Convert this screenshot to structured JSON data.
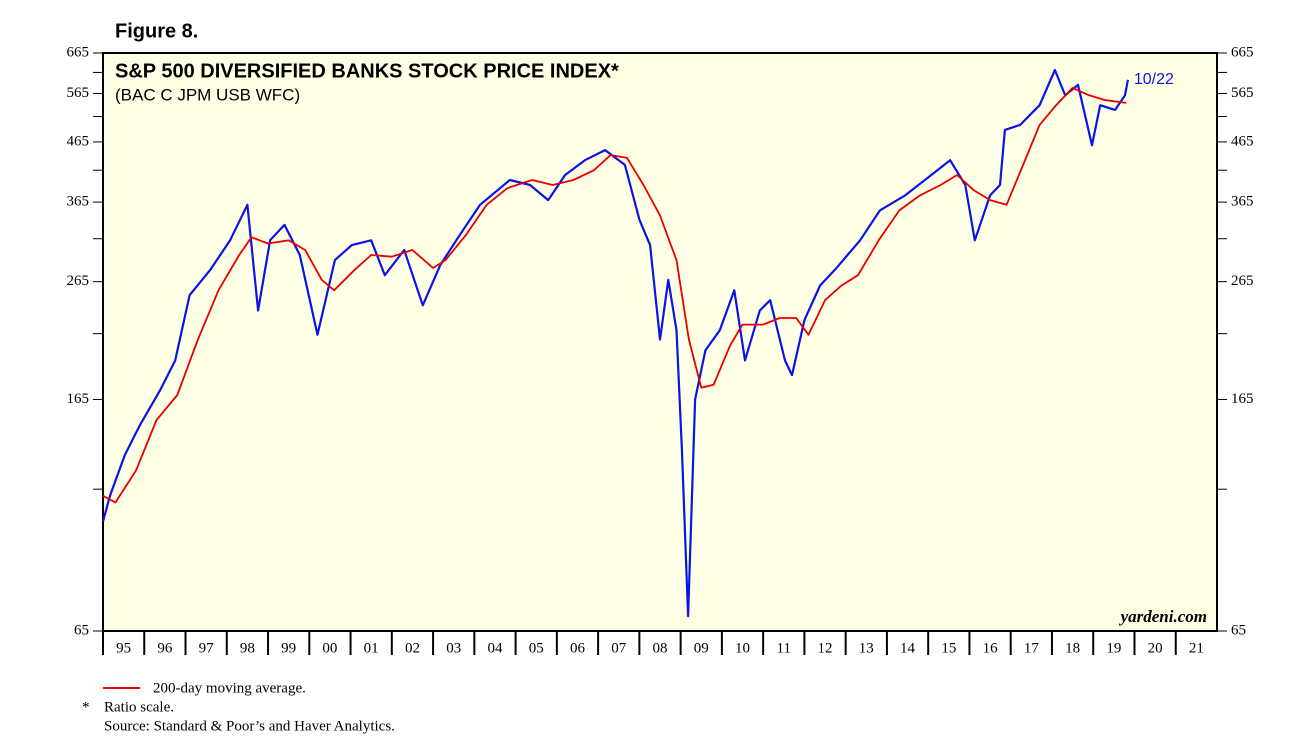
{
  "chart_data": {
    "type": "line",
    "figure_label": "Figure 8.",
    "title": "S&P 500 DIVERSIFIED BANKS STOCK PRICE INDEX*",
    "subtitle": "(BAC C JPM USB WFC)",
    "annotation": "10/22",
    "watermark": "yardeni.com",
    "footnote_symbol": "*",
    "footnote": "Ratio scale.",
    "source": "Source: Standard & Poor’s and Haver Analytics.",
    "log_scale": true,
    "xlim": [
      1995,
      2022
    ],
    "xticks": [
      {
        "value": 1995,
        "label": "95"
      },
      {
        "value": 1996,
        "label": "96"
      },
      {
        "value": 1997,
        "label": "97"
      },
      {
        "value": 1998,
        "label": "98"
      },
      {
        "value": 1999,
        "label": "99"
      },
      {
        "value": 2000,
        "label": "00"
      },
      {
        "value": 2001,
        "label": "01"
      },
      {
        "value": 2002,
        "label": "02"
      },
      {
        "value": 2003,
        "label": "03"
      },
      {
        "value": 2004,
        "label": "04"
      },
      {
        "value": 2005,
        "label": "05"
      },
      {
        "value": 2006,
        "label": "06"
      },
      {
        "value": 2007,
        "label": "07"
      },
      {
        "value": 2008,
        "label": "08"
      },
      {
        "value": 2009,
        "label": "09"
      },
      {
        "value": 2010,
        "label": "10"
      },
      {
        "value": 2011,
        "label": "11"
      },
      {
        "value": 2012,
        "label": "12"
      },
      {
        "value": 2013,
        "label": "13"
      },
      {
        "value": 2014,
        "label": "14"
      },
      {
        "value": 2015,
        "label": "15"
      },
      {
        "value": 2016,
        "label": "16"
      },
      {
        "value": 2017,
        "label": "17"
      },
      {
        "value": 2018,
        "label": "18"
      },
      {
        "value": 2019,
        "label": "19"
      },
      {
        "value": 2020,
        "label": "20"
      },
      {
        "value": 2021,
        "label": "21"
      }
    ],
    "ylim": [
      65,
      665
    ],
    "yticks": [
      65,
      165,
      265,
      365,
      465,
      565,
      665
    ],
    "minor_yticks": [
      115,
      215,
      315,
      415,
      515,
      615
    ],
    "series": [
      {
        "color": "#0a14e6",
        "x": [
          1995.0,
          1995.17,
          1995.53,
          1995.9,
          1996.38,
          1996.75,
          1997.1,
          1997.6,
          1998.08,
          1998.5,
          1998.76,
          1999.05,
          1999.4,
          1999.77,
          2000.2,
          2000.62,
          2001.03,
          2001.5,
          2001.83,
          2002.3,
          2002.75,
          2003.17,
          2003.65,
          2004.14,
          2004.86,
          2005.35,
          2005.79,
          2006.2,
          2006.68,
          2007.17,
          2007.65,
          2008.0,
          2008.26,
          2008.5,
          2008.7,
          2008.9,
          2009.03,
          2009.18,
          2009.35,
          2009.6,
          2009.95,
          2010.3,
          2010.56,
          2010.92,
          2011.17,
          2011.53,
          2011.7,
          2012.0,
          2012.38,
          2012.74,
          2013.35,
          2013.83,
          2014.44,
          2014.92,
          2015.53,
          2015.9,
          2016.13,
          2016.5,
          2016.74,
          2016.86,
          2017.23,
          2017.7,
          2018.07,
          2018.32,
          2018.63,
          2018.97,
          2019.17,
          2019.53,
          2019.77,
          2019.84
        ],
        "values": [
          101,
          112,
          132,
          149,
          171,
          193,
          251,
          278,
          313,
          361,
          236,
          313,
          333,
          295,
          214,
          289,
          307,
          313,
          272,
          301,
          241,
          283,
          320,
          361,
          399,
          391,
          368,
          407,
          432,
          450,
          424,
          340,
          307,
          210,
          267,
          218,
          135,
          69,
          165,
          201,
          218,
          256,
          193,
          236,
          246,
          193,
          182,
          227,
          261,
          278,
          313,
          353,
          375,
          399,
          432,
          391,
          313,
          375,
          391,
          488,
          498,
          539,
          621,
          561,
          585,
          459,
          539,
          529,
          561,
          597
        ]
      },
      {
        "name": "200-day moving average.",
        "color": "#e60000",
        "x": [
          1995.0,
          1995.3,
          1995.8,
          1996.3,
          1996.8,
          1997.3,
          1997.8,
          1998.3,
          1998.6,
          1999.0,
          1999.5,
          1999.9,
          2000.3,
          2000.6,
          2001.1,
          2001.5,
          2002.0,
          2002.5,
          2003.0,
          2003.3,
          2003.8,
          2004.3,
          2004.8,
          2005.4,
          2005.9,
          2006.4,
          2006.9,
          2007.3,
          2007.7,
          2008.1,
          2008.5,
          2008.9,
          2009.2,
          2009.5,
          2009.8,
          2010.2,
          2010.5,
          2011.0,
          2011.4,
          2011.8,
          2012.1,
          2012.5,
          2012.9,
          2013.3,
          2013.8,
          2014.3,
          2014.8,
          2015.3,
          2015.7,
          2016.1,
          2016.5,
          2016.9,
          2017.3,
          2017.7,
          2018.1,
          2018.5,
          2018.9,
          2019.3,
          2019.8
        ],
        "values": [
          112,
          109,
          124,
          152,
          168,
          210,
          256,
          295,
          317,
          309,
          313,
          301,
          267,
          256,
          278,
          295,
          293,
          301,
          280,
          289,
          320,
          361,
          386,
          399,
          391,
          399,
          415,
          441,
          436,
          391,
          346,
          289,
          210,
          173,
          175,
          205,
          223,
          223,
          229,
          229,
          214,
          246,
          261,
          272,
          313,
          353,
          375,
          391,
          407,
          383,
          368,
          361,
          424,
          498,
          539,
          578,
          561,
          550,
          544
        ]
      }
    ]
  }
}
